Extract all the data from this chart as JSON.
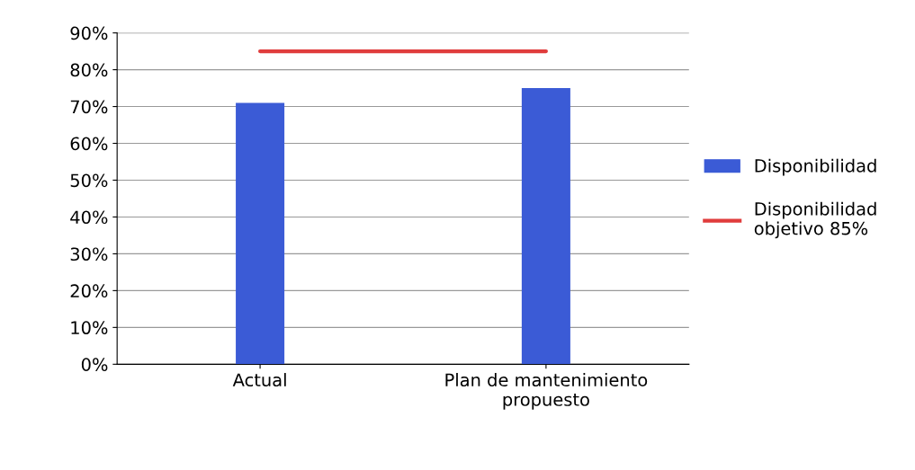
{
  "chart_data": {
    "type": "bar",
    "categories": [
      "Actual",
      "Plan de mantenimiento\npropuesto"
    ],
    "series": [
      {
        "name": "Disponibilidad",
        "color": "#3b5bd6",
        "values": [
          71,
          75
        ]
      },
      {
        "name": "Disponibilidad\nobjetivo 85%",
        "type": "line",
        "color": "#e03c3c",
        "values": [
          85,
          85
        ]
      }
    ],
    "ylim": [
      0,
      90
    ],
    "yticks": [
      {
        "value": 0,
        "label": "0%"
      },
      {
        "value": 10,
        "label": "10%"
      },
      {
        "value": 20,
        "label": "20%"
      },
      {
        "value": 30,
        "label": "30%"
      },
      {
        "value": 40,
        "label": "40%"
      },
      {
        "value": 50,
        "label": "50%"
      },
      {
        "value": 60,
        "label": "60%"
      },
      {
        "value": 70,
        "label": "70%"
      },
      {
        "value": 80,
        "label": "80%"
      },
      {
        "value": 90,
        "label": "90%"
      }
    ],
    "grid": "y",
    "legend": "right"
  }
}
